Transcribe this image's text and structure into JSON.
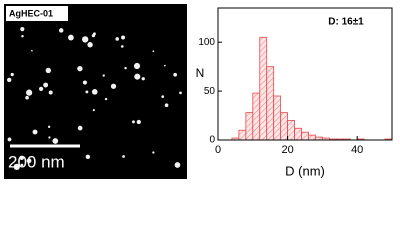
{
  "image": {
    "label": "AgHEC-01",
    "scale_bar": "200 nm"
  },
  "chart_data": {
    "type": "histogram",
    "annotation": "D: 16±1",
    "x_label": "D (nm)",
    "y_label": "N",
    "bins": [
      4,
      6,
      8,
      10,
      12,
      14,
      16,
      18,
      20,
      22,
      24,
      26,
      28,
      30,
      32,
      34,
      36,
      38,
      40,
      42,
      44,
      46,
      48,
      50
    ],
    "values": [
      2,
      10,
      28,
      48,
      105,
      75,
      45,
      28,
      20,
      12,
      8,
      5,
      3,
      2,
      1,
      1,
      1,
      0,
      1,
      0,
      0,
      0,
      1
    ],
    "color": "#e8474c",
    "xlim": [
      0,
      50
    ],
    "xticks": [
      0,
      20,
      40
    ],
    "ylim": [
      0,
      135
    ],
    "yticks": [
      0,
      50,
      100
    ]
  }
}
